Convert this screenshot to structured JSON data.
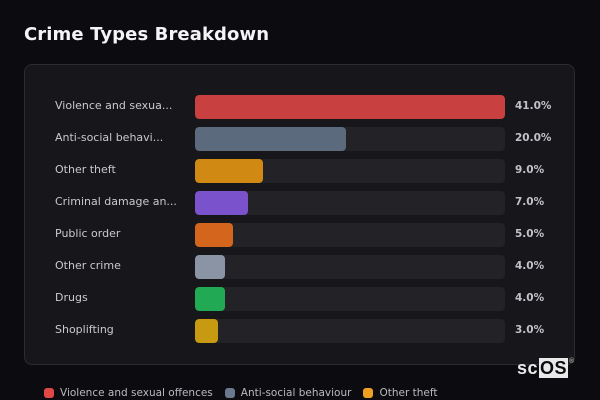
{
  "header": {
    "title": "Crime Types Breakdown"
  },
  "chart_data": {
    "type": "bar",
    "orientation": "horizontal",
    "title": "Crime Types Breakdown",
    "categories": [
      "Violence and sexual offences",
      "Anti-social behaviour",
      "Other theft",
      "Criminal damage and arson",
      "Public order",
      "Other crime",
      "Drugs",
      "Shoplifting"
    ],
    "display_labels": [
      "Violence and sexua...",
      "Anti-social behavi...",
      "Other theft",
      "Criminal damage an...",
      "Public order",
      "Other crime",
      "Drugs",
      "Shoplifting"
    ],
    "values": [
      41.0,
      20.0,
      9.0,
      7.0,
      5.0,
      4.0,
      4.0,
      3.0
    ],
    "value_labels": [
      "41.0%",
      "20.0%",
      "9.0%",
      "7.0%",
      "5.0%",
      "4.0%",
      "4.0%",
      "3.0%"
    ],
    "colors": [
      "#c94040",
      "#5c6a7e",
      "#d08a14",
      "#7a52cc",
      "#d3661c",
      "#8a94a4",
      "#22a954",
      "#c79a12"
    ],
    "unit": "%",
    "scale_max": 41.0,
    "xlabel": "",
    "ylabel": "",
    "grid": false,
    "legend_position": "bottom",
    "legend": [
      "Violence and sexual offences",
      "Anti-social behaviour",
      "Other theft"
    ]
  },
  "legend": {
    "items": [
      {
        "label": "Violence and sexual offences",
        "color": "#e04848"
      },
      {
        "label": "Anti-social behaviour",
        "color": "#6a7890"
      },
      {
        "label": "Other theft",
        "color": "#f0a020"
      }
    ]
  },
  "watermark": {
    "sc": "sc",
    "os": "OS",
    "reg": "®"
  }
}
